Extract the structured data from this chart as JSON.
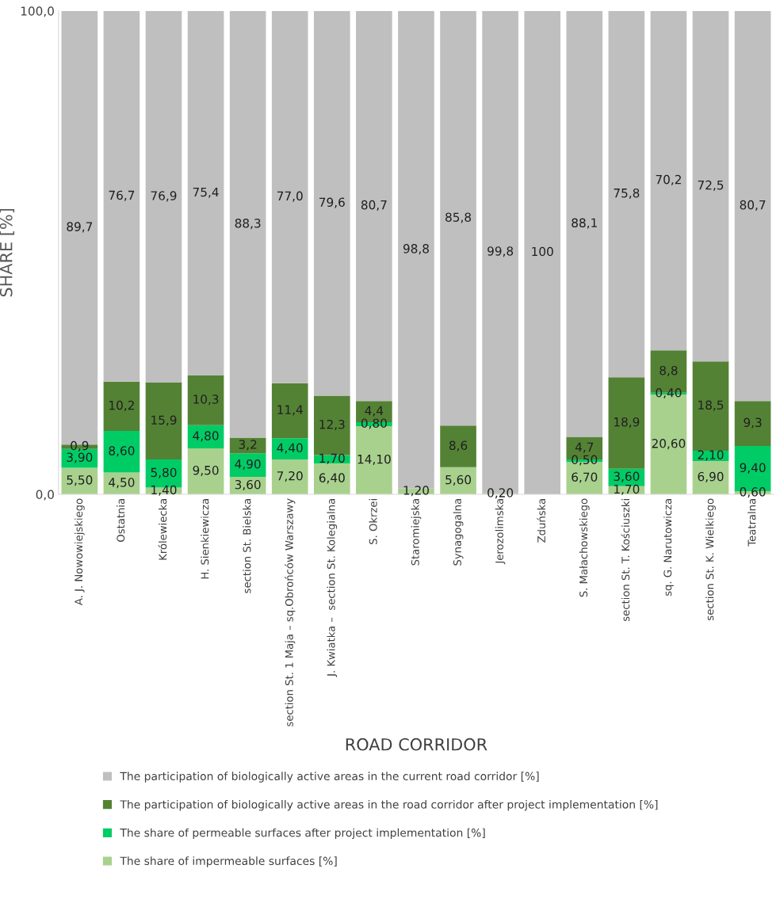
{
  "chart_data": {
    "type": "bar",
    "stacked": true,
    "ylabel": "SHARE [%]",
    "xlabel": "ROAD CORRIDOR",
    "ylim": [
      0,
      100
    ],
    "yticks": [
      {
        "value": 0,
        "label": "0,0"
      },
      {
        "value": 100,
        "label": "100,0"
      }
    ],
    "grid": false,
    "legend": "bottom",
    "categories": [
      "A. J. Nowowiejskiego",
      "Ostatnia",
      "Królewiecka",
      "H. Sienkiewicza",
      "section St. Bielska",
      "section St. 1 Maja – sq.Obrońców Warszawy",
      "J. Kwiatka –  section St. Kolegialna",
      "S. Okrzei",
      "Staromiejska",
      "Synagogalna",
      "Jerozolimska",
      "Zduńska",
      "S. Małachowskiego",
      "section St. T. Kościuszki",
      "sq. G. Narutowicza",
      "section St. K. Wielkiego",
      "Teatralna"
    ],
    "series": [
      {
        "name": "The share of impermeable surfaces [%]",
        "color": "#a9d18e",
        "values": [
          5.5,
          4.5,
          1.4,
          9.5,
          3.6,
          7.2,
          6.4,
          14.1,
          1.2,
          5.6,
          0.2,
          0,
          6.7,
          1.7,
          20.6,
          6.9,
          0.6
        ],
        "value_labels": [
          "5,50",
          "4,50",
          "1,40",
          "9,50",
          "3,60",
          "7,20",
          "6,40",
          "14,10",
          "1,20",
          "5,60",
          "0,20",
          null,
          "6,70",
          "1,70",
          "20,60",
          "6,90",
          "0,60"
        ]
      },
      {
        "name": "The share of permeable surfaces after project implementation [%]",
        "color": "#00cc66",
        "values": [
          3.9,
          8.6,
          5.8,
          4.8,
          4.9,
          4.4,
          1.7,
          0.8,
          0,
          0,
          0,
          0,
          0.5,
          3.6,
          0.4,
          2.1,
          9.4
        ],
        "value_labels": [
          "3,90",
          "8,60",
          "5,80",
          "4,80",
          "4,90",
          "4,40",
          "1,70",
          "0,80",
          null,
          null,
          null,
          null,
          "0,50",
          "3,60",
          "0,40",
          "2,10",
          "9,40"
        ]
      },
      {
        "name": "The participation of biologically active areas in the road corridor after project implementation [%]",
        "color": "#548235",
        "values": [
          0.9,
          10.2,
          15.9,
          10.3,
          3.2,
          11.4,
          12.3,
          4.4,
          0,
          8.6,
          0,
          0,
          4.7,
          18.9,
          8.8,
          18.5,
          9.3
        ],
        "value_labels": [
          "0,9",
          "10,2",
          "15,9",
          "10,3",
          "3,2",
          "11,4",
          "12,3",
          "4,4",
          null,
          "8,6",
          null,
          null,
          "4,7",
          "18,9",
          "8,8",
          "18,5",
          "9,3"
        ]
      },
      {
        "name": "The participation of biologically active areas in the current road corridor [%]",
        "color": "#bfbfbf",
        "values": [
          89.7,
          76.7,
          76.9,
          75.4,
          88.3,
          77.0,
          79.6,
          80.7,
          98.8,
          85.8,
          99.8,
          100,
          88.1,
          75.8,
          70.2,
          72.5,
          80.7
        ],
        "value_labels": [
          "89,7",
          "76,7",
          "76,9",
          "75,4",
          "88,3",
          "77,0",
          "79,6",
          "80,7",
          "98,8",
          "85,8",
          "99,8",
          "100",
          "88,1",
          "75,8",
          "70,2",
          "72,5",
          "80,7"
        ]
      }
    ]
  }
}
